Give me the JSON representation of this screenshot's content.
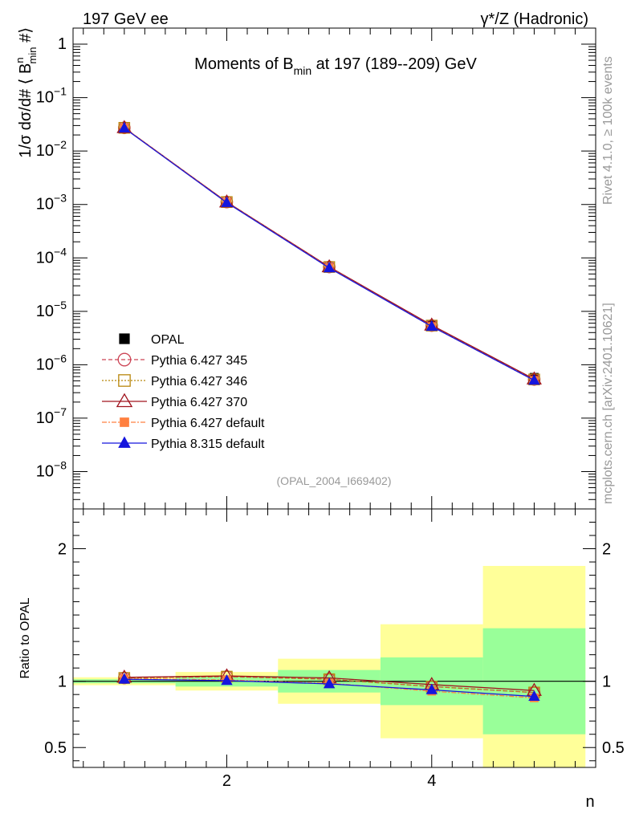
{
  "header": {
    "left": "197 GeV ee",
    "right": "γ*/Z (Hadronic)"
  },
  "side_labels": {
    "rivet": "Rivet 4.1.0, ≥ 100k events",
    "mcplots": "mcplots.cern.ch [arXiv:2401.10621]"
  },
  "colors": {
    "data_band_inner": "#99ff99",
    "data_band_outer": "#ffff99"
  },
  "chart_data": [
    {
      "type": "line",
      "title_parts": {
        "pre": "Moments of B",
        "sub": "min",
        "post": " at 197 (189--209) GeV"
      },
      "ylabel_parts": {
        "pre": "1/σ  dσ/d# ⟨ B",
        "sup": "n",
        "sub": "min",
        "post": " #⟩"
      },
      "yscale": "log",
      "ylim": [
        2e-09,
        2
      ],
      "xlim": [
        0.5,
        5.6
      ],
      "y_ticks": [
        {
          "v": 1,
          "m": "1",
          "e": ""
        },
        {
          "v": 0.1,
          "m": "10",
          "e": "−1"
        },
        {
          "v": 0.01,
          "m": "10",
          "e": "−2"
        },
        {
          "v": 0.001,
          "m": "10",
          "e": "−3"
        },
        {
          "v": 0.0001,
          "m": "10",
          "e": "−4"
        },
        {
          "v": 1e-05,
          "m": "10",
          "e": "−5"
        },
        {
          "v": 1e-06,
          "m": "10",
          "e": "−6"
        },
        {
          "v": 1e-07,
          "m": "10",
          "e": "−7"
        },
        {
          "v": 1e-08,
          "m": "10",
          "e": "−8"
        }
      ],
      "watermark": "(OPAL_2004_I669402)",
      "legend_position": "bottom-left",
      "x": [
        1,
        2,
        3,
        4,
        5
      ],
      "data": {
        "name": "OPAL",
        "values": [
          0.0265,
          0.00107,
          6.6e-05,
          5.6e-06,
          5.8e-07
        ],
        "color": "#000000"
      },
      "series": [
        {
          "name": "Pythia 6.427 345",
          "values": [
            0.0272,
            0.00111,
            6.75e-05,
            5.4e-06,
            5.3e-07
          ],
          "color": "#cc4455",
          "marker": "circle-open",
          "dash": "5,3"
        },
        {
          "name": "Pythia 6.427 346",
          "values": [
            0.0272,
            0.00111,
            6.75e-05,
            5.4e-06,
            5.3e-07
          ],
          "color": "#b8860b",
          "marker": "square-open",
          "dash": "2,2"
        },
        {
          "name": "Pythia 6.427 370",
          "values": [
            0.0273,
            0.00111,
            6.78e-05,
            5.5e-06,
            5.4e-07
          ],
          "color": "#a0141e",
          "marker": "triangle-open",
          "dash": ""
        },
        {
          "name": "Pythia 6.427 default",
          "values": [
            0.0271,
            0.00109,
            6.55e-05,
            5.2e-06,
            5.1e-07
          ],
          "color": "#ff8040",
          "marker": "square-filled",
          "dash": "6,2,2,2"
        },
        {
          "name": "Pythia 8.315 default",
          "values": [
            0.0268,
            0.00108,
            6.48e-05,
            5.2e-06,
            5.1e-07
          ],
          "color": "#1515dd",
          "marker": "triangle-filled",
          "dash": ""
        }
      ]
    },
    {
      "type": "line",
      "ylabel": "Ratio to OPAL",
      "xlabel": "n",
      "ylim": [
        0.35,
        2.3
      ],
      "xlim": [
        0.5,
        5.6
      ],
      "y_ticks": [
        0.5,
        1,
        2
      ],
      "y_tick_labels": [
        "0.5",
        "1",
        "2"
      ],
      "x_ticks": [
        2,
        4
      ],
      "x_tick_labels": [
        "2",
        "4"
      ],
      "reference": 1,
      "bands": [
        {
          "x0": 0.5,
          "x1": 1.5,
          "inner": [
            0.985,
            1.015
          ],
          "outer": [
            0.97,
            1.03
          ]
        },
        {
          "x0": 1.5,
          "x1": 2.5,
          "inner": [
            0.96,
            1.04
          ],
          "outer": [
            0.93,
            1.07
          ]
        },
        {
          "x0": 2.5,
          "x1": 3.5,
          "inner": [
            0.915,
            1.085
          ],
          "outer": [
            0.83,
            1.17
          ]
        },
        {
          "x0": 3.5,
          "x1": 4.5,
          "inner": [
            0.82,
            1.18
          ],
          "outer": [
            0.57,
            1.43
          ]
        },
        {
          "x0": 4.5,
          "x1": 5.5,
          "inner": [
            0.6,
            1.4
          ],
          "outer": [
            0.35,
            1.87
          ]
        }
      ],
      "series": [
        {
          "name": "Pythia 6.427 345",
          "values": [
            1.025,
            1.035,
            1.015,
            0.96,
            0.915
          ]
        },
        {
          "name": "Pythia 6.427 346",
          "values": [
            1.025,
            1.035,
            1.015,
            0.96,
            0.915
          ]
        },
        {
          "name": "Pythia 6.427 370",
          "values": [
            1.03,
            1.04,
            1.025,
            0.975,
            0.93
          ]
        },
        {
          "name": "Pythia 6.427 default",
          "values": [
            1.02,
            1.01,
            0.985,
            0.925,
            0.875
          ]
        },
        {
          "name": "Pythia 8.315 default",
          "values": [
            1.015,
            1.005,
            0.98,
            0.935,
            0.885
          ]
        }
      ]
    }
  ]
}
